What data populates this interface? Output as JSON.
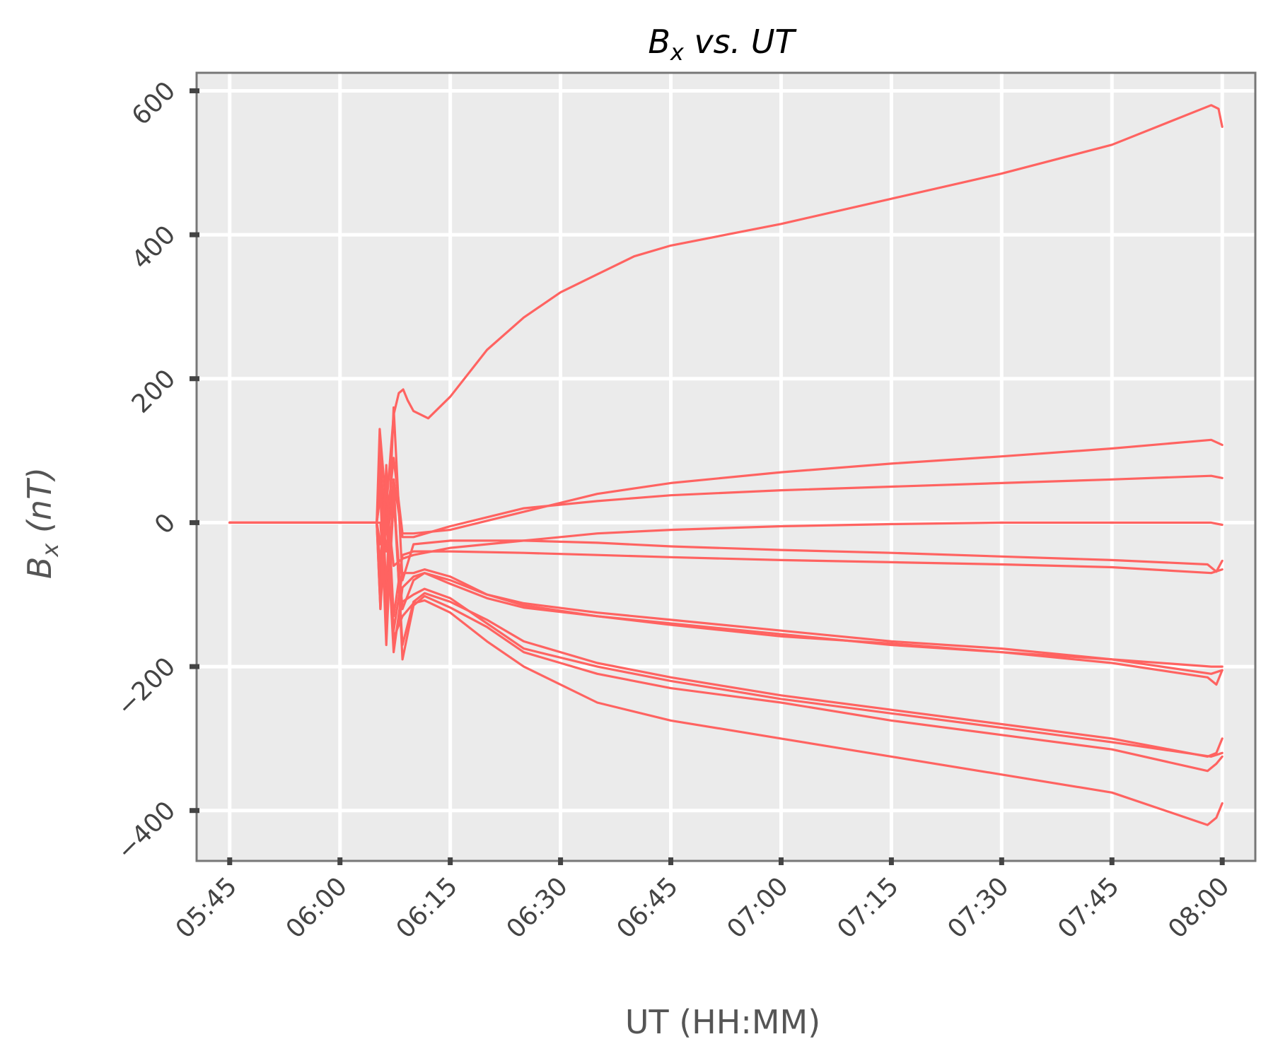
{
  "chart_data": {
    "type": "line",
    "title": {
      "base": "B",
      "sub": "x",
      "rest": " vs. UT"
    },
    "xlabel": "UT (HH:MM)",
    "ylabel": {
      "base": "B",
      "sub": "x",
      "rest": " (nT)"
    },
    "x_unit": "minutes after 05:45 UT",
    "xlim": [
      -4.5,
      139.5
    ],
    "ylim": [
      -470,
      625
    ],
    "x_ticks": [
      {
        "v": 0,
        "label": "05:45"
      },
      {
        "v": 15,
        "label": "06:00"
      },
      {
        "v": 30,
        "label": "06:15"
      },
      {
        "v": 45,
        "label": "06:30"
      },
      {
        "v": 60,
        "label": "06:45"
      },
      {
        "v": 75,
        "label": "07:00"
      },
      {
        "v": 90,
        "label": "07:15"
      },
      {
        "v": 105,
        "label": "07:30"
      },
      {
        "v": 120,
        "label": "07:45"
      },
      {
        "v": 135,
        "label": "08:00"
      }
    ],
    "y_ticks": [
      {
        "v": 600,
        "label": "600"
      },
      {
        "v": 400,
        "label": "400"
      },
      {
        "v": 200,
        "label": "200"
      },
      {
        "v": 0,
        "label": "0"
      },
      {
        "v": -200,
        "label": "−200"
      },
      {
        "v": -400,
        "label": "−400"
      }
    ],
    "grid": true,
    "line_color": "#ff6361",
    "plot_background": "#ebebeb",
    "series": [
      {
        "x": [
          0,
          20,
          20.4,
          21.3,
          22.3,
          23,
          23.6,
          24.2,
          25,
          27,
          30,
          35,
          40,
          45,
          50,
          55,
          60,
          75,
          90,
          105,
          120,
          133.5,
          134.5,
          135
        ],
        "y": [
          0,
          0,
          130,
          20,
          150,
          180,
          185,
          170,
          155,
          145,
          175,
          240,
          285,
          320,
          345,
          370,
          385,
          415,
          450,
          485,
          525,
          580,
          575,
          550
        ]
      },
      {
        "x": [
          0,
          20,
          20.5,
          21.3,
          22.3,
          23.5,
          25,
          30,
          40,
          50,
          60,
          75,
          90,
          105,
          120,
          133.5,
          135
        ],
        "y": [
          0,
          0,
          80,
          -10,
          90,
          -15,
          -15,
          -10,
          15,
          40,
          55,
          70,
          82,
          92,
          103,
          115,
          108
        ]
      },
      {
        "x": [
          0,
          20,
          20.5,
          21.3,
          22.3,
          23.5,
          25,
          30,
          40,
          50,
          60,
          75,
          90,
          105,
          120,
          133.5,
          135
        ],
        "y": [
          0,
          0,
          40,
          -40,
          60,
          -20,
          -20,
          -5,
          20,
          30,
          38,
          45,
          50,
          55,
          60,
          65,
          62
        ]
      },
      {
        "x": [
          0,
          20,
          20.5,
          21.3,
          22.3,
          23.5,
          25,
          30,
          40,
          50,
          60,
          75,
          90,
          105,
          120,
          133.5,
          135
        ],
        "y": [
          0,
          0,
          -30,
          30,
          -60,
          -50,
          -45,
          -35,
          -25,
          -15,
          -10,
          -5,
          -2,
          0,
          0,
          0,
          -3
        ]
      },
      {
        "x": [
          0,
          20,
          20.5,
          21.3,
          22.3,
          23.5,
          25,
          30,
          40,
          50,
          60,
          75,
          90,
          105,
          120,
          133,
          134.2,
          135
        ],
        "y": [
          0,
          0,
          100,
          -100,
          160,
          -80,
          -30,
          -25,
          -25,
          -28,
          -33,
          -38,
          -42,
          -47,
          -52,
          -58,
          -68,
          -53
        ]
      },
      {
        "x": [
          0,
          20,
          20.5,
          21.3,
          22.3,
          23.5,
          25,
          30,
          40,
          50,
          60,
          75,
          90,
          105,
          120,
          133.5,
          135
        ],
        "y": [
          0,
          0,
          -60,
          70,
          -130,
          -45,
          -40,
          -40,
          -42,
          -45,
          -48,
          -52,
          -55,
          -58,
          -62,
          -70,
          -65
        ]
      },
      {
        "x": [
          0,
          20,
          20.5,
          21.3,
          22.3,
          23.5,
          25,
          26.5,
          30,
          35,
          40,
          50,
          60,
          75,
          90,
          105,
          120,
          133.5,
          135
        ],
        "y": [
          0,
          0,
          -80,
          20,
          -150,
          -70,
          -70,
          -65,
          -75,
          -100,
          -112,
          -125,
          -135,
          -150,
          -165,
          -175,
          -190,
          -200,
          -200
        ]
      },
      {
        "x": [
          0,
          20,
          20.5,
          21.3,
          22.3,
          23.5,
          25,
          26.5,
          30,
          35,
          40,
          50,
          60,
          75,
          90,
          105,
          120,
          133,
          134.2,
          135
        ],
        "y": [
          0,
          0,
          -120,
          10,
          -180,
          -90,
          -75,
          -70,
          -80,
          -100,
          -115,
          -130,
          -140,
          -155,
          -170,
          -180,
          -195,
          -215,
          -225,
          -205
        ]
      },
      {
        "x": [
          0,
          20,
          20.5,
          21.3,
          22.3,
          23.5,
          25,
          26.5,
          30,
          35,
          40,
          50,
          60,
          75,
          90,
          105,
          120,
          133.5,
          135
        ],
        "y": [
          0,
          0,
          60,
          -150,
          30,
          -120,
          -80,
          -70,
          -85,
          -105,
          -118,
          -130,
          -142,
          -158,
          -168,
          -180,
          -190,
          -210,
          -205
        ]
      },
      {
        "x": [
          0,
          20,
          20.5,
          21.3,
          22.3,
          23.5,
          25,
          26.5,
          30,
          35,
          40,
          50,
          60,
          75,
          90,
          105,
          120,
          133,
          134.2,
          135
        ],
        "y": [
          0,
          0,
          0,
          -120,
          40,
          -170,
          -110,
          -98,
          -110,
          -135,
          -165,
          -195,
          -215,
          -240,
          -260,
          -280,
          -300,
          -325,
          -320,
          -300
        ]
      },
      {
        "x": [
          0,
          20,
          20.5,
          21.3,
          22.3,
          23.5,
          25,
          26.5,
          30,
          35,
          40,
          50,
          60,
          75,
          90,
          105,
          120,
          133.5,
          135
        ],
        "y": [
          0,
          0,
          -100,
          60,
          -170,
          -110,
          -100,
          -92,
          -105,
          -140,
          -175,
          -200,
          -220,
          -245,
          -265,
          -285,
          -305,
          -325,
          -320
        ]
      },
      {
        "x": [
          0,
          20,
          20.5,
          21.3,
          22.3,
          23.5,
          25,
          26.5,
          30,
          35,
          40,
          50,
          60,
          75,
          90,
          105,
          120,
          133,
          134.2,
          135
        ],
        "y": [
          0,
          0,
          40,
          -170,
          60,
          -190,
          -115,
          -102,
          -118,
          -145,
          -180,
          -210,
          -230,
          -250,
          -275,
          -295,
          -315,
          -345,
          -335,
          -325
        ]
      },
      {
        "x": [
          0,
          20,
          20.5,
          21.3,
          22.3,
          23.5,
          25,
          26.5,
          30,
          35,
          40,
          50,
          60,
          75,
          90,
          105,
          120,
          133,
          134.2,
          135
        ],
        "y": [
          0,
          0,
          -120,
          80,
          -160,
          -130,
          -112,
          -108,
          -125,
          -165,
          -200,
          -250,
          -275,
          -300,
          -325,
          -350,
          -375,
          -420,
          -410,
          -390
        ]
      }
    ]
  }
}
